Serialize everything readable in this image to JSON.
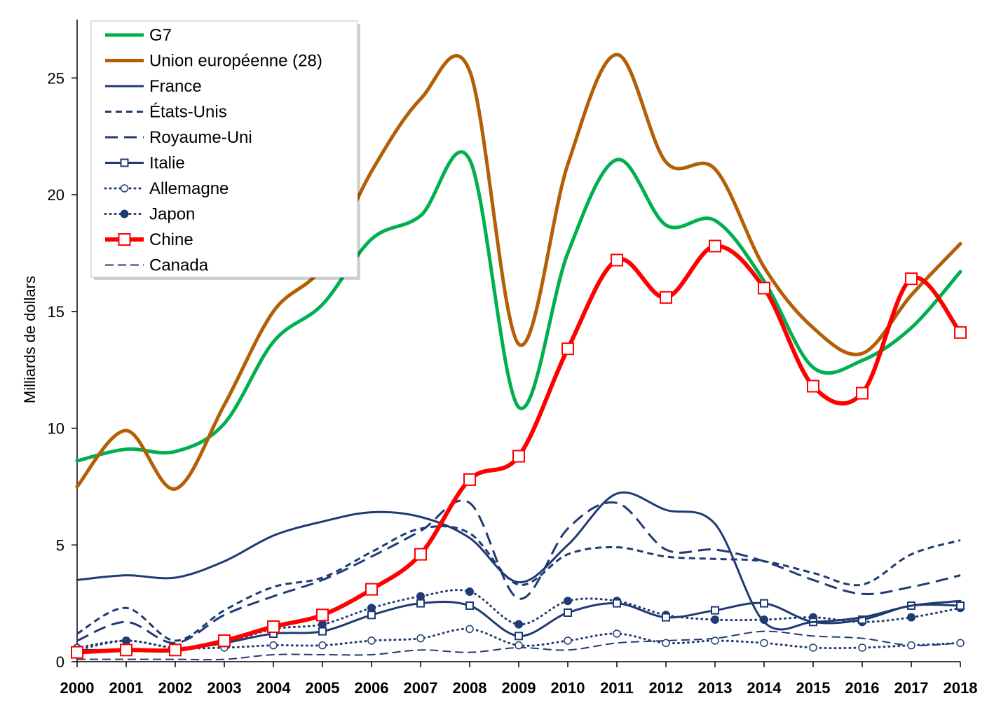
{
  "chart_data": {
    "type": "line",
    "ylabel": "Milliards de dollars",
    "xlabel": "",
    "title": "",
    "ylim": [
      0,
      27.5
    ],
    "yticks": [
      0,
      5,
      10,
      15,
      20,
      25
    ],
    "grid": false,
    "legend_position": "top-left",
    "x": [
      "2000",
      "2001",
      "2002",
      "2003",
      "2004",
      "2005",
      "2006",
      "2007",
      "2008",
      "2009",
      "2010",
      "2011",
      "2012",
      "2013",
      "2014",
      "2015",
      "2016",
      "2017",
      "2018"
    ],
    "series": [
      {
        "name": "G7",
        "color": "#00b050",
        "style": "solid",
        "width": 5,
        "marker": "none",
        "values": [
          8.6,
          9.1,
          9.0,
          10.2,
          13.7,
          15.3,
          18.1,
          19.1,
          21.5,
          10.9,
          17.5,
          21.5,
          18.7,
          18.9,
          16.3,
          12.6,
          12.9,
          14.3,
          16.7
        ]
      },
      {
        "name": "Union européenne (28)",
        "color": "#b45f06",
        "style": "solid",
        "width": 5,
        "marker": "none",
        "values": [
          7.5,
          9.9,
          7.4,
          11.0,
          15.0,
          16.9,
          21.0,
          24.1,
          25.3,
          13.6,
          21.3,
          26.0,
          21.4,
          21.1,
          16.9,
          14.3,
          13.2,
          15.7,
          17.9
        ]
      },
      {
        "name": "France",
        "color": "#1f3b73",
        "style": "solid",
        "width": 3,
        "marker": "none",
        "values": [
          3.5,
          3.7,
          3.6,
          4.3,
          5.4,
          6.0,
          6.4,
          6.2,
          5.3,
          3.4,
          5.0,
          7.2,
          6.5,
          5.9,
          1.7,
          1.7,
          1.9,
          2.4,
          2.6
        ]
      },
      {
        "name": "États-Unis",
        "color": "#1f3b73",
        "style": "dash",
        "width": 3,
        "marker": "none",
        "values": [
          1.2,
          2.3,
          0.9,
          2.2,
          3.2,
          3.6,
          4.7,
          5.7,
          5.5,
          3.3,
          4.6,
          4.9,
          4.5,
          4.4,
          4.3,
          3.8,
          3.3,
          4.6,
          5.2
        ]
      },
      {
        "name": "Royaume-Uni",
        "color": "#1f3b73",
        "style": "longdash",
        "width": 3,
        "marker": "none",
        "values": [
          0.9,
          1.7,
          0.8,
          2.0,
          2.8,
          3.5,
          4.5,
          5.6,
          6.8,
          2.7,
          5.7,
          6.8,
          4.8,
          4.8,
          4.3,
          3.5,
          2.9,
          3.2,
          3.7
        ]
      },
      {
        "name": "Italie",
        "color": "#1f3b73",
        "style": "solid",
        "width": 3,
        "marker": "square-open",
        "values": [
          0.5,
          0.5,
          0.5,
          0.8,
          1.2,
          1.3,
          2.0,
          2.5,
          2.4,
          1.1,
          2.1,
          2.5,
          1.9,
          2.2,
          2.5,
          1.7,
          1.8,
          2.4,
          2.4
        ]
      },
      {
        "name": "Allemagne",
        "color": "#1f3b73",
        "style": "dot",
        "width": 3,
        "marker": "circle-open",
        "values": [
          0.6,
          0.9,
          0.6,
          0.6,
          0.7,
          0.7,
          0.9,
          1.0,
          1.4,
          0.7,
          0.9,
          1.2,
          0.8,
          0.9,
          0.8,
          0.6,
          0.6,
          0.7,
          0.8
        ]
      },
      {
        "name": "Japon",
        "color": "#1f3b73",
        "style": "dot",
        "width": 3,
        "marker": "circle-filled",
        "values": [
          0.5,
          0.9,
          0.6,
          0.8,
          1.4,
          1.6,
          2.3,
          2.8,
          3.0,
          1.6,
          2.6,
          2.6,
          2.0,
          1.8,
          1.8,
          1.9,
          1.7,
          1.9,
          2.3
        ]
      },
      {
        "name": "Chine",
        "color": "#ff0000",
        "style": "solid",
        "width": 6,
        "marker": "square-open-big",
        "values": [
          0.4,
          0.5,
          0.5,
          0.9,
          1.5,
          2.0,
          3.1,
          4.6,
          7.8,
          8.8,
          13.4,
          17.2,
          15.6,
          17.8,
          16.0,
          11.8,
          11.5,
          16.4,
          14.1
        ]
      },
      {
        "name": "Canada",
        "color": "#1f3b73",
        "style": "longdash",
        "width": 2,
        "marker": "none",
        "values": [
          0.1,
          0.1,
          0.1,
          0.1,
          0.3,
          0.3,
          0.3,
          0.5,
          0.4,
          0.6,
          0.5,
          0.8,
          0.9,
          1.0,
          1.3,
          1.1,
          1.0,
          0.7,
          0.8
        ]
      }
    ]
  }
}
